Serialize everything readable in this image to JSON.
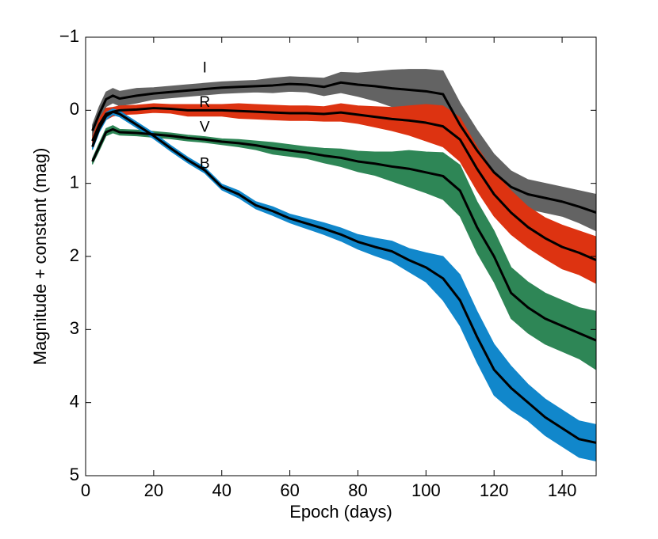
{
  "chart_data": {
    "type": "band-line",
    "xlabel": "Epoch (days)",
    "ylabel": "Magnitude + constant (mag)",
    "xlim": [
      0,
      150
    ],
    "ylim": [
      -1,
      5
    ],
    "y_inverted": true,
    "xticks": [
      0,
      20,
      40,
      60,
      80,
      100,
      120,
      140
    ],
    "yticks": [
      {
        "value": -1,
        "label": "−1"
      },
      0,
      1,
      2,
      3,
      4,
      5
    ],
    "x": [
      2,
      4,
      6,
      8,
      10,
      15,
      20,
      25,
      30,
      35,
      40,
      45,
      50,
      55,
      60,
      65,
      70,
      75,
      80,
      85,
      90,
      95,
      100,
      105,
      110,
      115,
      120,
      125,
      130,
      135,
      140,
      145,
      150
    ],
    "series": [
      {
        "name": "I",
        "color": "#636363",
        "values": [
          0.28,
          0.05,
          -0.15,
          -0.2,
          -0.16,
          -0.2,
          -0.23,
          -0.25,
          -0.27,
          -0.29,
          -0.31,
          -0.32,
          -0.33,
          -0.34,
          -0.36,
          -0.35,
          -0.32,
          -0.38,
          -0.35,
          -0.33,
          -0.3,
          -0.28,
          -0.26,
          -0.22,
          0.2,
          0.55,
          0.85,
          1.05,
          1.15,
          1.2,
          1.25,
          1.32,
          1.4
        ],
        "errors": [
          0.08,
          0.1,
          0.1,
          0.1,
          0.1,
          0.1,
          0.08,
          0.08,
          0.08,
          0.08,
          0.08,
          0.08,
          0.08,
          0.1,
          0.1,
          0.1,
          0.12,
          0.14,
          0.16,
          0.2,
          0.25,
          0.28,
          0.3,
          0.32,
          0.3,
          0.28,
          0.25,
          0.22,
          0.2,
          0.2,
          0.2,
          0.22,
          0.25
        ]
      },
      {
        "name": "R",
        "color": "#dd3311",
        "values": [
          0.42,
          0.2,
          0.05,
          0.02,
          0.0,
          -0.01,
          -0.03,
          -0.02,
          0.0,
          0.0,
          0.0,
          0.01,
          0.02,
          0.03,
          0.04,
          0.04,
          0.05,
          0.03,
          0.06,
          0.09,
          0.12,
          0.14,
          0.17,
          0.22,
          0.4,
          0.8,
          1.15,
          1.4,
          1.6,
          1.75,
          1.87,
          1.95,
          2.05
        ],
        "errors": [
          0.05,
          0.08,
          0.08,
          0.06,
          0.06,
          0.06,
          0.06,
          0.06,
          0.08,
          0.08,
          0.08,
          0.1,
          0.1,
          0.1,
          0.1,
          0.1,
          0.1,
          0.12,
          0.12,
          0.14,
          0.16,
          0.2,
          0.25,
          0.28,
          0.3,
          0.3,
          0.3,
          0.3,
          0.28,
          0.28,
          0.3,
          0.3,
          0.32
        ]
      },
      {
        "name": "V",
        "color": "#2e8656",
        "values": [
          0.7,
          0.5,
          0.3,
          0.26,
          0.3,
          0.31,
          0.33,
          0.35,
          0.38,
          0.4,
          0.43,
          0.45,
          0.48,
          0.52,
          0.55,
          0.58,
          0.62,
          0.65,
          0.7,
          0.73,
          0.77,
          0.8,
          0.85,
          0.9,
          1.1,
          1.6,
          2.0,
          2.5,
          2.7,
          2.85,
          2.95,
          3.05,
          3.15
        ],
        "errors": [
          0.04,
          0.05,
          0.05,
          0.05,
          0.04,
          0.04,
          0.04,
          0.04,
          0.04,
          0.04,
          0.04,
          0.05,
          0.06,
          0.08,
          0.08,
          0.08,
          0.1,
          0.12,
          0.14,
          0.16,
          0.2,
          0.25,
          0.28,
          0.32,
          0.35,
          0.35,
          0.35,
          0.35,
          0.35,
          0.35,
          0.35,
          0.35,
          0.4
        ]
      },
      {
        "name": "B",
        "color": "#1187cb",
        "values": [
          0.5,
          0.25,
          0.08,
          0.02,
          0.05,
          0.2,
          0.35,
          0.52,
          0.68,
          0.82,
          1.05,
          1.15,
          1.3,
          1.38,
          1.48,
          1.55,
          1.62,
          1.7,
          1.8,
          1.87,
          1.93,
          2.05,
          2.15,
          2.3,
          2.6,
          3.1,
          3.55,
          3.8,
          4.0,
          4.2,
          4.35,
          4.5,
          4.55
        ],
        "errors": [
          0.04,
          0.05,
          0.05,
          0.04,
          0.04,
          0.04,
          0.04,
          0.04,
          0.04,
          0.04,
          0.04,
          0.05,
          0.05,
          0.06,
          0.06,
          0.07,
          0.08,
          0.09,
          0.1,
          0.12,
          0.14,
          0.16,
          0.2,
          0.3,
          0.35,
          0.35,
          0.35,
          0.3,
          0.25,
          0.25,
          0.25,
          0.25,
          0.25
        ]
      }
    ]
  }
}
